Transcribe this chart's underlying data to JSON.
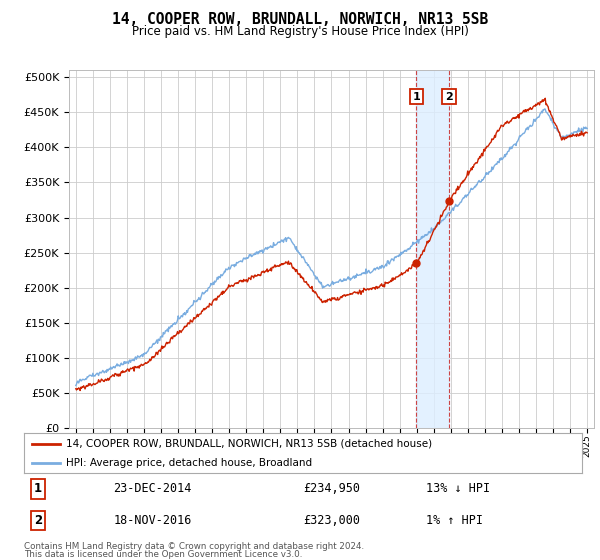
{
  "title": "14, COOPER ROW, BRUNDALL, NORWICH, NR13 5SB",
  "subtitle": "Price paid vs. HM Land Registry's House Price Index (HPI)",
  "legend_entry1": "14, COOPER ROW, BRUNDALL, NORWICH, NR13 5SB (detached house)",
  "legend_entry2": "HPI: Average price, detached house, Broadland",
  "annotation1_date": "23-DEC-2014",
  "annotation1_price": "£234,950",
  "annotation1_hpi": "13% ↓ HPI",
  "annotation2_date": "18-NOV-2016",
  "annotation2_price": "£323,000",
  "annotation2_hpi": "1% ↑ HPI",
  "footer": "Contains HM Land Registry data © Crown copyright and database right 2024.\nThis data is licensed under the Open Government Licence v3.0.",
  "hpi_color": "#7aade0",
  "price_color": "#cc2200",
  "background_color": "#ffffff",
  "grid_color": "#cccccc",
  "shading_color": "#ddeeff",
  "annotation_box_color": "#cc2200",
  "purchase1_year": 2014.97,
  "purchase2_year": 2016.9,
  "purchase1_price": 234950,
  "purchase2_price": 323000
}
